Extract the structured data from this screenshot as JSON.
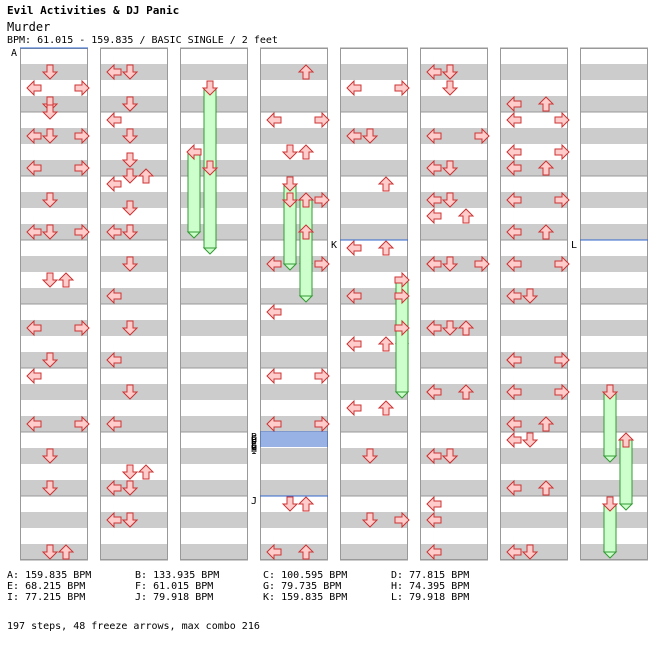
{
  "header": {
    "artist": "Evil Activities & DJ Panic",
    "title": "Murder",
    "info": "BPM: 61.015 - 159.835 / BASIC SINGLE / 2 feet"
  },
  "colors": {
    "stripe": "#cccccc",
    "arrow_fill": "#ffcccc",
    "arrow_stroke": "#cc3333",
    "freeze_fill": "#ccffcc",
    "freeze_stroke": "#339933",
    "bpm_line": "#3366cc"
  },
  "chart": {
    "columns": 8,
    "measures_per_column": 8,
    "lanes": [
      "left",
      "down",
      "up",
      "right"
    ],
    "bpm_markers": [
      {
        "label": "A",
        "column": 1,
        "measure": 0,
        "beat": 0
      },
      {
        "label": "K",
        "column": 5,
        "measure": 3,
        "beat": 0
      },
      {
        "label": "L",
        "column": 8,
        "measure": 3,
        "beat": 0
      },
      {
        "label": "B",
        "column": 4,
        "measure": 6,
        "beat": 0
      },
      {
        "label": "C",
        "column": 4,
        "measure": 6,
        "beat": 0.5
      },
      {
        "label": "D",
        "column": 4,
        "measure": 6,
        "beat": 1
      },
      {
        "label": "E",
        "column": 4,
        "measure": 6,
        "beat": 1.5
      },
      {
        "label": "F",
        "column": 4,
        "measure": 6,
        "beat": 2
      },
      {
        "label": "G",
        "column": 4,
        "measure": 6,
        "beat": 2.5
      },
      {
        "label": "H",
        "column": 4,
        "measure": 6,
        "beat": 3
      },
      {
        "label": "I",
        "column": 4,
        "measure": 6,
        "beat": 3.5
      },
      {
        "label": "J",
        "column": 4,
        "measure": 7,
        "beat": 0
      }
    ],
    "notes": [
      [
        [
          1,
          0,
          1
        ],
        [
          1,
          0,
          3
        ],
        [
          1,
          1,
          3
        ],
        [
          1,
          0,
          5
        ],
        [
          1,
          1,
          3.5
        ],
        [
          1,
          0,
          6.5
        ],
        [
          1,
          0,
          5
        ],
        [
          1,
          2,
          7.5
        ],
        [
          1,
          0,
          9
        ],
        [
          1,
          1,
          9.5
        ],
        [
          1,
          1,
          11
        ],
        [
          1,
          0,
          13
        ],
        [
          1,
          2,
          14
        ],
        [
          1,
          0,
          17
        ],
        [
          1,
          0,
          19
        ],
        [
          1,
          1,
          21
        ],
        [
          1,
          0,
          25
        ],
        [
          1,
          2,
          26
        ],
        [
          1,
          0,
          27
        ],
        [
          1,
          1,
          29
        ],
        [
          1,
          2,
          31
        ]
      ],
      [
        [
          0,
          1,
          1
        ],
        [
          1,
          0,
          2
        ],
        [
          1,
          1,
          3
        ],
        [
          1,
          0,
          1
        ],
        [
          0,
          0,
          4
        ],
        [
          0,
          1,
          7
        ],
        [
          0,
          0,
          8
        ],
        [
          0,
          2,
          10
        ],
        [
          0,
          1,
          11
        ],
        [
          0,
          1,
          13
        ],
        [
          0,
          0,
          15
        ],
        [
          0,
          1,
          17
        ],
        [
          0,
          0,
          19
        ],
        [
          0,
          2,
          21
        ],
        [
          0,
          0,
          23
        ],
        [
          0,
          1,
          25
        ],
        [
          0,
          1,
          27
        ],
        [
          0,
          0,
          28
        ],
        [
          0,
          1,
          29
        ],
        [
          0,
          0,
          31
        ]
      ],
      [
        [
          0,
          3,
          2
        ],
        [
          0,
          3,
          4
        ],
        [
          0,
          3,
          5
        ],
        [
          0,
          3,
          6
        ],
        [
          0,
          3,
          7
        ],
        [
          0,
          3,
          9
        ],
        [
          0,
          3,
          11
        ],
        [
          0,
          3,
          13
        ],
        [
          0,
          3,
          17
        ],
        [
          0,
          3,
          19
        ],
        [
          0,
          0,
          20
        ],
        [
          0,
          3,
          21
        ],
        [
          0,
          3,
          23
        ],
        [
          0,
          1,
          24
        ]
      ],
      [
        [
          2,
          0,
          33
        ],
        [
          0,
          3,
          34
        ],
        [
          0,
          3,
          36
        ],
        [
          0,
          1,
          37
        ],
        [
          2,
          1,
          38
        ],
        [
          2,
          0,
          40
        ],
        [
          1,
          3,
          41
        ],
        [
          0,
          2,
          44
        ],
        [
          0,
          3,
          45
        ],
        [
          0,
          3,
          47
        ],
        [
          0,
          0,
          48
        ],
        [
          0,
          2,
          50
        ],
        [
          0,
          3,
          52
        ],
        [
          0,
          2,
          54
        ],
        [
          0,
          3,
          55
        ],
        [
          1,
          1,
          57
        ],
        [
          1,
          2,
          60
        ],
        [
          1,
          3,
          61
        ],
        [
          0,
          2,
          63
        ]
      ],
      [
        [
          0,
          1,
          33
        ],
        [
          0,
          2,
          35
        ],
        [
          0,
          3,
          37
        ],
        [
          0,
          2,
          39
        ],
        [
          0,
          1,
          41
        ],
        [
          0,
          2,
          43
        ],
        [
          0,
          3,
          45
        ],
        [
          0,
          1,
          47
        ],
        [
          0,
          2,
          49
        ],
        [
          0,
          3,
          51
        ],
        [
          0,
          0,
          53
        ],
        [
          0,
          2,
          55
        ],
        [
          0,
          1,
          57
        ],
        [
          0,
          2,
          59
        ],
        [
          0,
          0,
          61
        ],
        [
          0,
          1,
          63
        ]
      ]
    ],
    "freeze": [
      [
        1,
        1,
        2,
        5
      ],
      [
        0,
        1,
        6,
        5
      ],
      [
        1,
        2,
        7,
        5
      ],
      [
        1,
        3,
        8,
        5
      ],
      [
        2,
        3,
        9,
        4
      ],
      [
        2,
        1,
        11,
        4
      ],
      [
        3,
        3,
        14,
        4
      ],
      [
        3,
        0,
        17,
        4
      ],
      [
        1,
        2,
        21,
        4
      ],
      [
        2,
        1,
        24,
        4
      ],
      [
        1,
        0,
        28,
        4
      ]
    ]
  },
  "legend": [
    {
      "key": "A",
      "bpm": "159.835 BPM"
    },
    {
      "key": "B",
      "bpm": "133.935 BPM"
    },
    {
      "key": "C",
      "bpm": "100.595 BPM"
    },
    {
      "key": "D",
      "bpm": "77.815 BPM"
    },
    {
      "key": "E",
      "bpm": "68.215 BPM"
    },
    {
      "key": "F",
      "bpm": "61.015 BPM"
    },
    {
      "key": "G",
      "bpm": "79.735 BPM"
    },
    {
      "key": "H",
      "bpm": "74.395 BPM"
    },
    {
      "key": "I",
      "bpm": "77.215 BPM"
    },
    {
      "key": "J",
      "bpm": "79.918 BPM"
    },
    {
      "key": "K",
      "bpm": "159.835 BPM"
    },
    {
      "key": "L",
      "bpm": "79.918 BPM"
    }
  ],
  "summary": "197 steps, 48 freeze arrows, max combo 216"
}
